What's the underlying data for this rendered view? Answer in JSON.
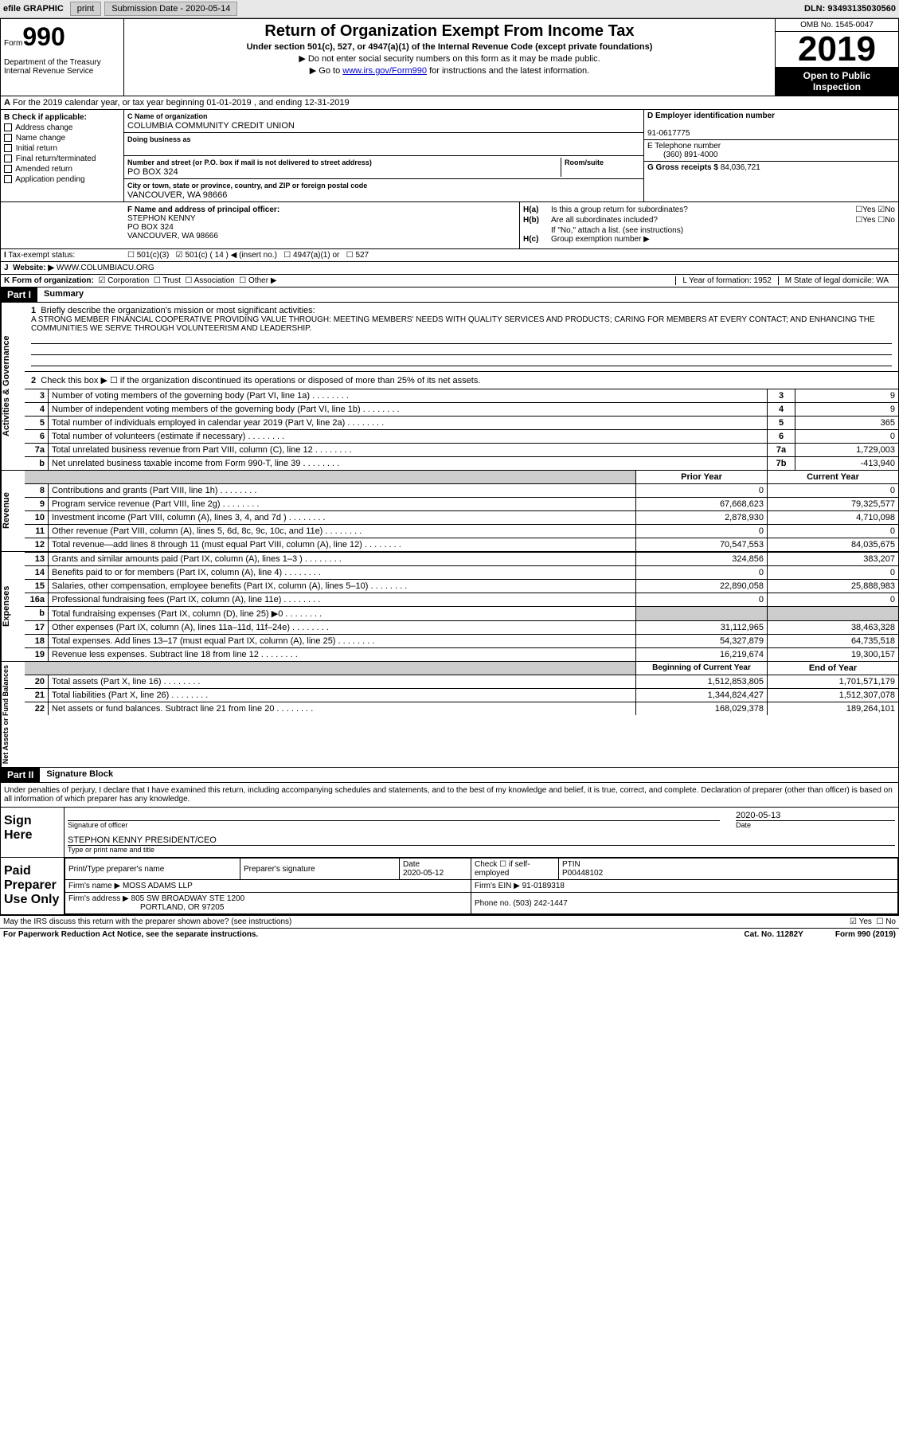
{
  "topbar": {
    "efile": "efile GRAPHIC",
    "print": "print",
    "submission": "Submission Date - 2020-05-14",
    "dln": "DLN: 93493135030560"
  },
  "header": {
    "form_prefix": "Form",
    "form_num": "990",
    "dept": "Department of the Treasury\nInternal Revenue Service",
    "title": "Return of Organization Exempt From Income Tax",
    "subtitle": "Under section 501(c), 527, or 4947(a)(1) of the Internal Revenue Code (except private foundations)",
    "instr1": "▶ Do not enter social security numbers on this form as it may be made public.",
    "instr2_pre": "▶ Go to ",
    "instr2_link": "www.irs.gov/Form990",
    "instr2_post": " for instructions and the latest information.",
    "omb": "OMB No. 1545-0047",
    "year": "2019",
    "open": "Open to Public Inspection"
  },
  "row_a": "For the 2019 calendar year, or tax year beginning 01-01-2019   , and ending 12-31-2019",
  "section_b": {
    "label": "B Check if applicable:",
    "items": [
      "Address change",
      "Name change",
      "Initial return",
      "Final return/terminated",
      "Amended return",
      "Application pending"
    ]
  },
  "section_c": {
    "lbl": "C Name of organization",
    "name": "COLUMBIA COMMUNITY CREDIT UNION",
    "dba": "Doing business as",
    "addr_lbl": "Number and street (or P.O. box if mail is not delivered to street address)",
    "addr": "PO BOX 324",
    "room_lbl": "Room/suite",
    "city_lbl": "City or town, state or province, country, and ZIP or foreign postal code",
    "city": "VANCOUVER, WA  98666"
  },
  "section_d": {
    "lbl": "D Employer identification number",
    "ein": "91-0617775",
    "e_lbl": "E Telephone number",
    "phone": "(360) 891-4000",
    "g_lbl": "G Gross receipts $",
    "gross": "84,036,721"
  },
  "section_f": {
    "lbl": "F Name and address of principal officer:",
    "name": "STEPHON KENNY",
    "addr1": "PO BOX 324",
    "addr2": "VANCOUVER, WA  98666"
  },
  "section_h": {
    "a_lbl": "Is this a group return for subordinates?",
    "b_lbl": "Are all subordinates included?",
    "b_note": "If \"No,\" attach a list. (see instructions)",
    "c_lbl": "Group exemption number ▶"
  },
  "row_i": {
    "lbl": "Tax-exempt status:",
    "opt1": "501(c)(3)",
    "opt2": "501(c) ( 14 ) ◀ (insert no.)",
    "opt3": "4947(a)(1) or",
    "opt4": "527"
  },
  "row_j": {
    "lbl": "Website: ▶",
    "val": "WWW.COLUMBIACU.ORG"
  },
  "row_k": {
    "lbl": "K Form of organization:",
    "opts": [
      "Corporation",
      "Trust",
      "Association",
      "Other ▶"
    ],
    "l": "L Year of formation: 1952",
    "m": "M State of legal domicile: WA"
  },
  "part1": {
    "hdr": "Part I",
    "title": "Summary",
    "q1_lbl": "Briefly describe the organization's mission or most significant activities:",
    "q1_text": "A STRONG MEMBER FINANCIAL COOPERATIVE PROVIDING VALUE THROUGH: MEETING MEMBERS' NEEDS WITH QUALITY SERVICES AND PRODUCTS; CARING FOR MEMBERS AT EVERY CONTACT; AND ENHANCING THE COMMUNITIES WE SERVE THROUGH VOLUNTEERISM AND LEADERSHIP.",
    "q2": "Check this box ▶ ☐  if the organization discontinued its operations or disposed of more than 25% of its net assets.",
    "side1": "Activities & Governance",
    "side2": "Revenue",
    "side3": "Expenses",
    "side4": "Net Assets or Fund Balances",
    "lines_single": [
      {
        "n": "3",
        "t": "Number of voting members of the governing body (Part VI, line 1a)",
        "box": "3",
        "v": "9"
      },
      {
        "n": "4",
        "t": "Number of independent voting members of the governing body (Part VI, line 1b)",
        "box": "4",
        "v": "9"
      },
      {
        "n": "5",
        "t": "Total number of individuals employed in calendar year 2019 (Part V, line 2a)",
        "box": "5",
        "v": "365"
      },
      {
        "n": "6",
        "t": "Total number of volunteers (estimate if necessary)",
        "box": "6",
        "v": "0"
      },
      {
        "n": "7a",
        "t": "Total unrelated business revenue from Part VIII, column (C), line 12",
        "box": "7a",
        "v": "1,729,003"
      },
      {
        "n": "b",
        "t": "Net unrelated business taxable income from Form 990-T, line 39",
        "box": "7b",
        "v": "-413,940"
      }
    ],
    "col_hdrs": {
      "prior": "Prior Year",
      "current": "Current Year"
    },
    "revenue": [
      {
        "n": "8",
        "t": "Contributions and grants (Part VIII, line 1h)",
        "p": "0",
        "c": "0"
      },
      {
        "n": "9",
        "t": "Program service revenue (Part VIII, line 2g)",
        "p": "67,668,623",
        "c": "79,325,577"
      },
      {
        "n": "10",
        "t": "Investment income (Part VIII, column (A), lines 3, 4, and 7d )",
        "p": "2,878,930",
        "c": "4,710,098"
      },
      {
        "n": "11",
        "t": "Other revenue (Part VIII, column (A), lines 5, 6d, 8c, 9c, 10c, and 11e)",
        "p": "0",
        "c": "0"
      },
      {
        "n": "12",
        "t": "Total revenue—add lines 8 through 11 (must equal Part VIII, column (A), line 12)",
        "p": "70,547,553",
        "c": "84,035,675"
      }
    ],
    "expenses": [
      {
        "n": "13",
        "t": "Grants and similar amounts paid (Part IX, column (A), lines 1–3 )",
        "p": "324,856",
        "c": "383,207"
      },
      {
        "n": "14",
        "t": "Benefits paid to or for members (Part IX, column (A), line 4)",
        "p": "0",
        "c": "0"
      },
      {
        "n": "15",
        "t": "Salaries, other compensation, employee benefits (Part IX, column (A), lines 5–10)",
        "p": "22,890,058",
        "c": "25,888,983"
      },
      {
        "n": "16a",
        "t": "Professional fundraising fees (Part IX, column (A), line 11e)",
        "p": "0",
        "c": "0"
      },
      {
        "n": "b",
        "t": "Total fundraising expenses (Part IX, column (D), line 25) ▶0",
        "p": "",
        "c": "",
        "grey": true
      },
      {
        "n": "17",
        "t": "Other expenses (Part IX, column (A), lines 11a–11d, 11f–24e)",
        "p": "31,112,965",
        "c": "38,463,328"
      },
      {
        "n": "18",
        "t": "Total expenses. Add lines 13–17 (must equal Part IX, column (A), line 25)",
        "p": "54,327,879",
        "c": "64,735,518"
      },
      {
        "n": "19",
        "t": "Revenue less expenses. Subtract line 18 from line 12",
        "p": "16,219,674",
        "c": "19,300,157"
      }
    ],
    "net_hdrs": {
      "prior": "Beginning of Current Year",
      "current": "End of Year"
    },
    "net": [
      {
        "n": "20",
        "t": "Total assets (Part X, line 16)",
        "p": "1,512,853,805",
        "c": "1,701,571,179"
      },
      {
        "n": "21",
        "t": "Total liabilities (Part X, line 26)",
        "p": "1,344,824,427",
        "c": "1,512,307,078"
      },
      {
        "n": "22",
        "t": "Net assets or fund balances. Subtract line 21 from line 20",
        "p": "168,029,378",
        "c": "189,264,101"
      }
    ]
  },
  "part2": {
    "hdr": "Part II",
    "title": "Signature Block",
    "decl": "Under penalties of perjury, I declare that I have examined this return, including accompanying schedules and statements, and to the best of my knowledge and belief, it is true, correct, and complete. Declaration of preparer (other than officer) is based on all information of which preparer has any knowledge.",
    "sign_here": "Sign Here",
    "sig_officer": "Signature of officer",
    "sig_date": "2020-05-13",
    "date_lbl": "Date",
    "officer": "STEPHON KENNY PRESIDENT/CEO",
    "officer_lbl": "Type or print name and title",
    "paid": "Paid Preparer Use Only",
    "prep_name_lbl": "Print/Type preparer's name",
    "prep_sig_lbl": "Preparer's signature",
    "prep_date_lbl": "Date",
    "prep_date": "2020-05-12",
    "prep_check": "Check ☐ if self-employed",
    "ptin_lbl": "PTIN",
    "ptin": "P00448102",
    "firm_lbl": "Firm's name    ▶",
    "firm": "MOSS ADAMS LLP",
    "firm_ein_lbl": "Firm's EIN ▶",
    "firm_ein": "91-0189318",
    "firm_addr_lbl": "Firm's address ▶",
    "firm_addr": "805 SW BROADWAY STE 1200",
    "firm_city": "PORTLAND, OR  97205",
    "phone_lbl": "Phone no.",
    "phone": "(503) 242-1447"
  },
  "footer": {
    "discuss": "May the IRS discuss this return with the preparer shown above? (see instructions)",
    "paperwork": "For Paperwork Reduction Act Notice, see the separate instructions.",
    "cat": "Cat. No. 11282Y",
    "form": "Form 990 (2019)"
  }
}
